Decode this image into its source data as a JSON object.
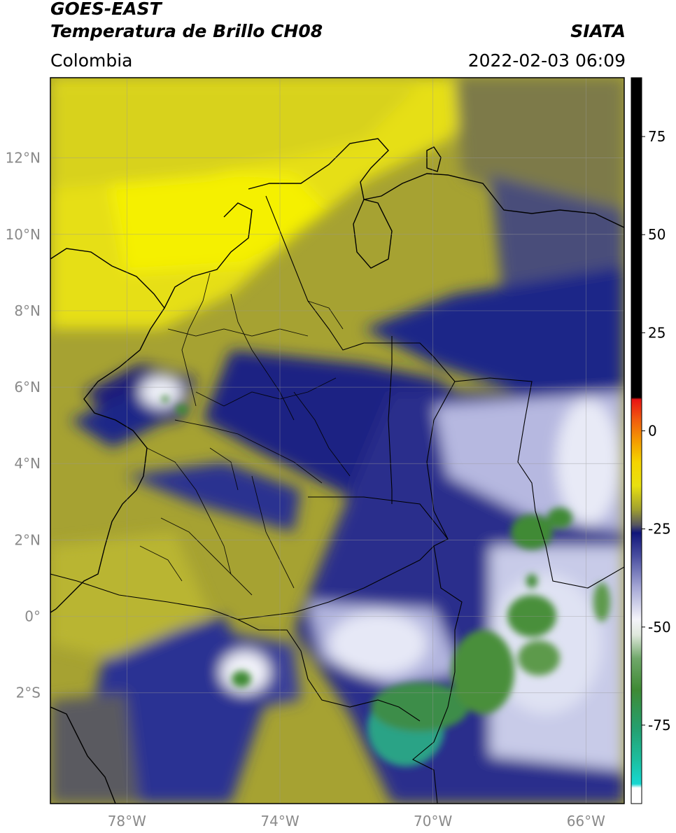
{
  "header": {
    "satellite": "GOES-EAST",
    "product": "Temperatura de Brillo CH08",
    "region": "Colombia",
    "source": "SIATA",
    "datetime": "2022-02-03 06:09"
  },
  "map": {
    "lat_ticks": [
      {
        "value": 12,
        "label": "12°N"
      },
      {
        "value": 10,
        "label": "10°N"
      },
      {
        "value": 8,
        "label": "8°N"
      },
      {
        "value": 6,
        "label": "6°N"
      },
      {
        "value": 4,
        "label": "4°N"
      },
      {
        "value": 2,
        "label": "2°N"
      },
      {
        "value": 0,
        "label": "0°"
      },
      {
        "value": -2,
        "label": "2°S"
      }
    ],
    "lon_ticks": [
      {
        "value": -78,
        "label": "78°W"
      },
      {
        "value": -74,
        "label": "74°W"
      },
      {
        "value": -70,
        "label": "70°W"
      },
      {
        "value": -66,
        "label": "66°W"
      }
    ],
    "lat_range": [
      -4.9,
      14.1
    ],
    "lon_range": [
      -80.0,
      -65.0
    ],
    "grid": true,
    "colors": {
      "cold_cloud_blue": "#1a1f7a",
      "dry_yellow": "#f2ea12",
      "olive": "#9b9a2e",
      "cloud_white": "#eef0f8",
      "deep_convection_green": "#3d8a33",
      "coast_lines": "#000000"
    }
  },
  "colorbar": {
    "ticks": [
      {
        "value": 75,
        "label": "75"
      },
      {
        "value": 50,
        "label": "50"
      },
      {
        "value": 25,
        "label": "25"
      },
      {
        "value": 0,
        "label": "0"
      },
      {
        "value": -25,
        "label": "-25"
      },
      {
        "value": -50,
        "label": "-50"
      },
      {
        "value": -75,
        "label": "-75"
      }
    ],
    "range": [
      -95,
      90
    ],
    "stops": [
      {
        "value": -95,
        "color": "#ffffff"
      },
      {
        "value": -91,
        "color": "#ffffff"
      },
      {
        "value": -90,
        "color": "#16d8d2"
      },
      {
        "value": -84,
        "color": "#1cbfa0"
      },
      {
        "value": -76,
        "color": "#24a070"
      },
      {
        "value": -66,
        "color": "#3f8a35"
      },
      {
        "value": -58,
        "color": "#70a86a"
      },
      {
        "value": -52,
        "color": "#dfe8dc"
      },
      {
        "value": -48,
        "color": "#f4f4fa"
      },
      {
        "value": -40,
        "color": "#a6a8d6"
      },
      {
        "value": -32,
        "color": "#4a4fa0"
      },
      {
        "value": -26,
        "color": "#10157a"
      },
      {
        "value": -24,
        "color": "#555560"
      },
      {
        "value": -20,
        "color": "#a0a030"
      },
      {
        "value": -14,
        "color": "#e8e010"
      },
      {
        "value": -8,
        "color": "#f5d400"
      },
      {
        "value": -3,
        "color": "#f4a000"
      },
      {
        "value": 3,
        "color": "#f05a10"
      },
      {
        "value": 8,
        "color": "#e81414"
      },
      {
        "value": 8.5,
        "color": "#000000"
      },
      {
        "value": 90,
        "color": "#000000"
      }
    ]
  }
}
